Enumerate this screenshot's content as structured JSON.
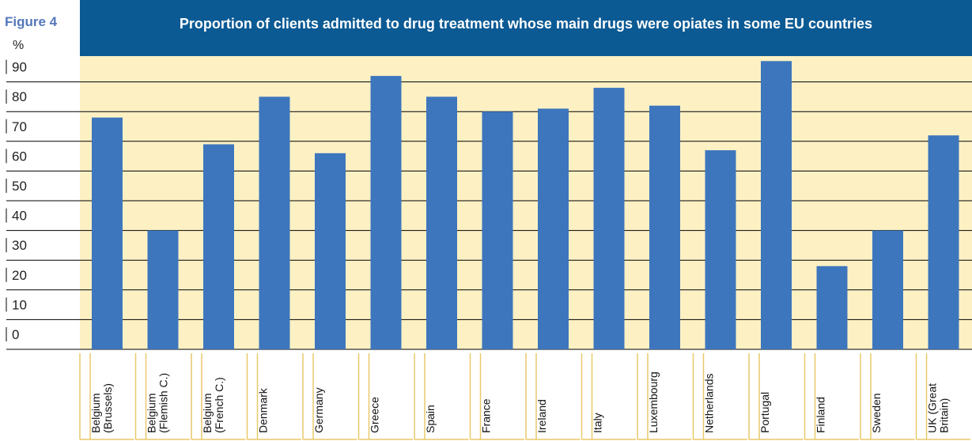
{
  "figure_label": "Figure 4",
  "colors": {
    "title_bg": "#0b5a94",
    "figure_label": "#5577bb",
    "plot_bg": "#fdf1c4",
    "bar": "#3d76bd",
    "gridline": "#000000",
    "label_box_border": "#e9c96a"
  },
  "chart_data": {
    "type": "bar",
    "title": "Proportion of clients admitted to drug treatment whose main drugs were opiates in some EU countries",
    "ylabel": "%",
    "xlabel": "",
    "ylim": [
      0,
      100
    ],
    "yticks": [
      "0",
      "10",
      "20",
      "30",
      "40",
      "50",
      "60",
      "70",
      "80",
      "90"
    ],
    "grid": true,
    "categories": [
      "Belgium (Brussels)",
      "Belgium (Flemish C.)",
      "Belgium (French C.)",
      "Denmark",
      "Germany",
      "Greece",
      "Spain",
      "France",
      "Ireland",
      "Italy",
      "Luxembourg",
      "Netherlands",
      "Portugal",
      "Finland",
      "Sweden",
      "UK (Great Britain)"
    ],
    "category_lines": [
      [
        "Belgium",
        "(Brussels)"
      ],
      [
        "Belgium",
        "(Flemish C.)"
      ],
      [
        "Belgium",
        "(French C.)"
      ],
      [
        "Denmark"
      ],
      [
        "Germany"
      ],
      [
        "Greece"
      ],
      [
        "Spain"
      ],
      [
        "France"
      ],
      [
        "Ireland"
      ],
      [
        "Italy"
      ],
      [
        "Luxembourg"
      ],
      [
        "Netherlands"
      ],
      [
        "Portugal"
      ],
      [
        "Finland"
      ],
      [
        "Sweden"
      ],
      [
        "UK (Great",
        "Britain)"
      ]
    ],
    "values": [
      78,
      40,
      69,
      85,
      66,
      92,
      85,
      80,
      81,
      88,
      82,
      67,
      97,
      28,
      40,
      72
    ]
  }
}
